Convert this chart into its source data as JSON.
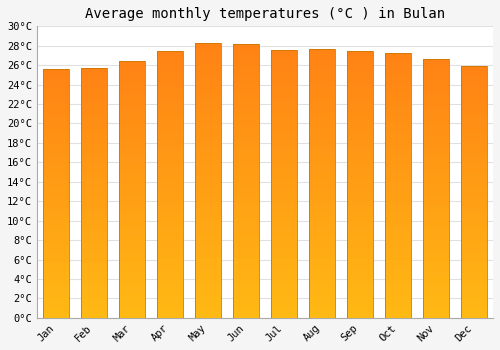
{
  "title": "Average monthly temperatures (°C ) in Bulan",
  "months": [
    "Jan",
    "Feb",
    "Mar",
    "Apr",
    "May",
    "Jun",
    "Jul",
    "Aug",
    "Sep",
    "Oct",
    "Nov",
    "Dec"
  ],
  "values": [
    25.6,
    25.7,
    26.4,
    27.5,
    28.3,
    28.2,
    27.6,
    27.7,
    27.5,
    27.2,
    26.6,
    25.9
  ],
  "bar_color_bottom": "#FFB300",
  "bar_color_top": "#FF8C00",
  "bar_edge_color": "#CC7700",
  "background_color": "#f5f5f5",
  "plot_bg_color": "#ffffff",
  "grid_color": "#e0e0e0",
  "ylim": [
    0,
    30
  ],
  "ytick_step": 2,
  "title_fontsize": 10,
  "tick_fontsize": 7.5,
  "font_family": "monospace"
}
